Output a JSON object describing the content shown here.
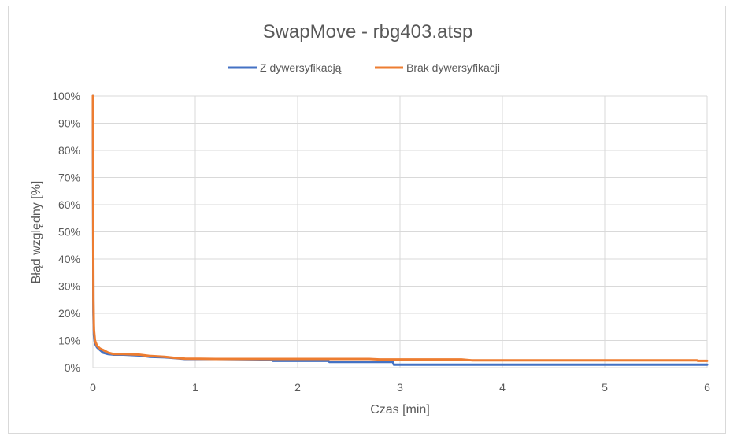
{
  "chart_data": {
    "type": "line",
    "title": "SwapMove - rbg403.atsp",
    "xlabel": "Czas [min]",
    "ylabel": "Błąd względny [%]",
    "xlim": [
      0,
      6
    ],
    "ylim": [
      0,
      100
    ],
    "xticks": [
      0,
      1,
      2,
      3,
      4,
      5,
      6
    ],
    "xtick_labels": [
      "0",
      "1",
      "2",
      "3",
      "4",
      "5",
      "6"
    ],
    "yticks": [
      0,
      10,
      20,
      30,
      40,
      50,
      60,
      70,
      80,
      90,
      100
    ],
    "ytick_labels": [
      "0%",
      "10%",
      "20%",
      "30%",
      "40%",
      "50%",
      "60%",
      "70%",
      "80%",
      "90%",
      "100%"
    ],
    "grid": true,
    "legend_position": "top",
    "series": [
      {
        "name": "Z dywersyfikacją",
        "color": "#4472c4",
        "x": [
          0,
          0.005,
          0.01,
          0.02,
          0.04,
          0.07,
          0.1,
          0.15,
          0.2,
          0.3,
          0.45,
          0.55,
          0.7,
          0.8,
          0.9,
          1.2,
          1.75,
          1.76,
          2.3,
          2.31,
          2.93,
          2.94,
          5.0,
          6.0
        ],
        "y": [
          100,
          20,
          12,
          9,
          7.5,
          6.5,
          5.5,
          5.0,
          4.8,
          4.8,
          4.5,
          4.0,
          3.8,
          3.5,
          3.2,
          3.2,
          3.0,
          2.5,
          2.5,
          2.1,
          2.1,
          1.1,
          1.1,
          1.1
        ]
      },
      {
        "name": "Brak dywersyfikacji",
        "color": "#ed7d31",
        "x": [
          0,
          0.005,
          0.01,
          0.02,
          0.04,
          0.07,
          0.1,
          0.15,
          0.2,
          0.3,
          0.45,
          0.55,
          0.7,
          0.8,
          0.9,
          1.2,
          2.7,
          2.8,
          3.6,
          3.7,
          5.9,
          5.91,
          6.0
        ],
        "y": [
          100,
          25,
          14,
          10,
          8,
          7,
          6.5,
          5.5,
          5.0,
          5.0,
          4.8,
          4.3,
          4.0,
          3.6,
          3.3,
          3.2,
          3.2,
          3.0,
          3.0,
          2.7,
          2.7,
          2.5,
          2.5
        ]
      }
    ]
  }
}
